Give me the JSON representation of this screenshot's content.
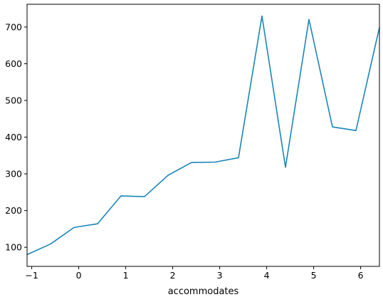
{
  "chart_data": {
    "type": "line",
    "title": "",
    "xlabel": "accommodates",
    "ylabel": "",
    "xlim": [
      -1.1,
      6.4
    ],
    "ylim": [
      48,
      762
    ],
    "x_ticks": [
      -1,
      0,
      1,
      2,
      3,
      4,
      5,
      6
    ],
    "y_ticks": [
      100,
      200,
      300,
      400,
      500,
      600,
      700
    ],
    "grid": false,
    "colors": {
      "line": "#1a86b8",
      "axis": "#000000",
      "background": "#ffffff"
    },
    "series": [
      {
        "x": [
          -1.1,
          -0.6,
          -0.1,
          0.4,
          0.9,
          1.4,
          1.9,
          2.4,
          2.9,
          3.4,
          3.9,
          4.4,
          4.9,
          5.4,
          5.9,
          6.4
        ],
        "y": [
          80,
          109,
          154,
          164,
          240,
          238,
          296,
          331,
          332,
          344,
          730,
          318,
          721,
          428,
          418,
          699
        ]
      }
    ]
  }
}
